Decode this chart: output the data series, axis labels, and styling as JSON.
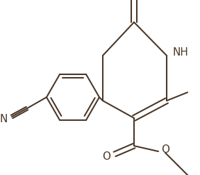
{
  "background_color": "#ffffff",
  "line_color": "#4a3728",
  "line_width": 1.5,
  "figsize": [
    2.88,
    2.52
  ],
  "dpi": 100,
  "xlim": [
    0,
    288
  ],
  "ylim": [
    0,
    252
  ]
}
